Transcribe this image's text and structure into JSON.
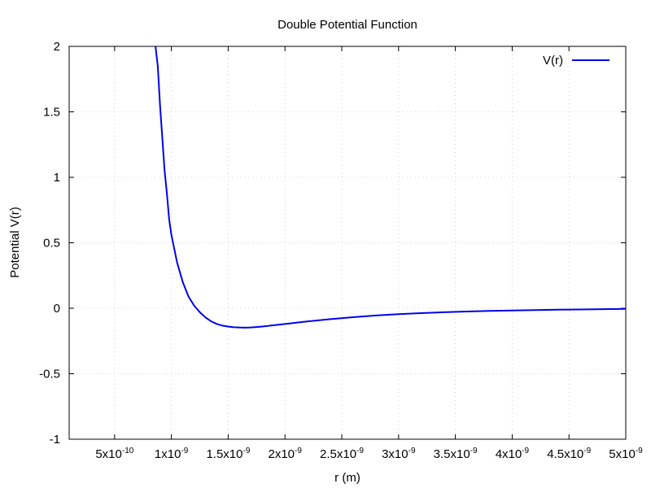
{
  "chart_data": {
    "type": "line",
    "title": "Double Potential Function",
    "xlabel": "r (m)",
    "ylabel": "Potential V(r)",
    "xlim": [
      1e-10,
      5e-09
    ],
    "ylim": [
      -1,
      2
    ],
    "grid": true,
    "legend": {
      "placement": "top-right",
      "entries": [
        "V(r)"
      ]
    },
    "x_ticks": [
      {
        "value": 5e-10,
        "mantissa": "5",
        "exponent": "-10"
      },
      {
        "value": 1e-09,
        "mantissa": "1",
        "exponent": "-9"
      },
      {
        "value": 1.5e-09,
        "mantissa": "1.5",
        "exponent": "-9"
      },
      {
        "value": 2e-09,
        "mantissa": "2",
        "exponent": "-9"
      },
      {
        "value": 2.5e-09,
        "mantissa": "2.5",
        "exponent": "-9"
      },
      {
        "value": 3e-09,
        "mantissa": "3",
        "exponent": "-9"
      },
      {
        "value": 3.5e-09,
        "mantissa": "3.5",
        "exponent": "-9"
      },
      {
        "value": 4e-09,
        "mantissa": "4",
        "exponent": "-9"
      },
      {
        "value": 4.5e-09,
        "mantissa": "4.5",
        "exponent": "-9"
      },
      {
        "value": 5e-09,
        "mantissa": "5",
        "exponent": "-9"
      }
    ],
    "y_ticks": [
      {
        "value": -1,
        "label": "-1"
      },
      {
        "value": -0.5,
        "label": "-0.5"
      },
      {
        "value": 0,
        "label": "0"
      },
      {
        "value": 0.5,
        "label": "0.5"
      },
      {
        "value": 1,
        "label": "1"
      },
      {
        "value": 1.5,
        "label": "1.5"
      },
      {
        "value": 2,
        "label": "2"
      }
    ],
    "series": [
      {
        "name": "V(r)",
        "color": "#0000ee",
        "x": [
          8.6e-10,
          8.8e-10,
          9e-10,
          9.2e-10,
          9.4e-10,
          9.6e-10,
          9.8e-10,
          1e-09,
          1.05e-09,
          1.1e-09,
          1.15e-09,
          1.2e-09,
          1.25e-09,
          1.3e-09,
          1.35e-09,
          1.4e-09,
          1.45e-09,
          1.5e-09,
          1.55e-09,
          1.6e-09,
          1.65e-09,
          1.7e-09,
          1.8e-09,
          1.9e-09,
          2e-09,
          2.2e-09,
          2.4e-09,
          2.6e-09,
          2.8e-09,
          3e-09,
          3.2e-09,
          3.4e-09,
          3.6e-09,
          3.8e-09,
          4e-09,
          4.2e-09,
          4.4e-09,
          4.6e-09,
          4.8e-09,
          5e-09
        ],
        "y": [
          2.0,
          1.85,
          1.55,
          1.3,
          1.05,
          0.88,
          0.68,
          0.56,
          0.35,
          0.2,
          0.09,
          0.02,
          -0.03,
          -0.07,
          -0.1,
          -0.12,
          -0.133,
          -0.14,
          -0.145,
          -0.147,
          -0.148,
          -0.147,
          -0.14,
          -0.13,
          -0.12,
          -0.1,
          -0.083,
          -0.068,
          -0.055,
          -0.045,
          -0.037,
          -0.03,
          -0.025,
          -0.02,
          -0.017,
          -0.014,
          -0.011,
          -0.009,
          -0.007,
          -0.005
        ]
      }
    ]
  }
}
